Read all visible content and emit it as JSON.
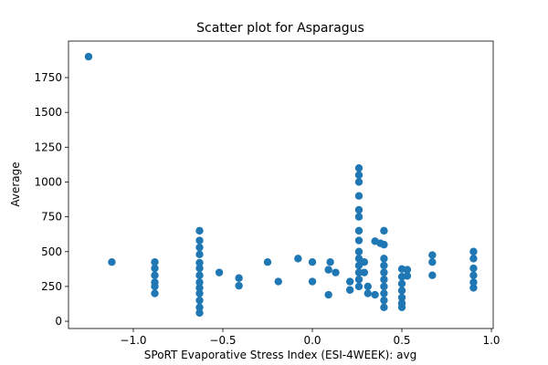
{
  "chart_data": {
    "type": "scatter",
    "title": "Scatter plot for Asparagus",
    "x_label": "SPoRT Evaporative Stress Index (ESI-4WEEK): avg",
    "y_label": "Average",
    "xlim": [
      -1.362,
      1.01
    ],
    "ylim": [
      -52,
      2012
    ],
    "xticks": [
      {
        "value": -1.0,
        "label": "−1.0"
      },
      {
        "value": -0.5,
        "label": "−0.5"
      },
      {
        "value": 0.0,
        "label": "0.0"
      },
      {
        "value": 0.5,
        "label": "0.5"
      },
      {
        "value": 1.0,
        "label": "1.0"
      }
    ],
    "yticks": [
      0,
      250,
      500,
      750,
      1000,
      1250,
      1500,
      1750
    ],
    "series": [
      {
        "color": "#1f77b4",
        "x": [
          -1.25,
          -1.12,
          -0.88,
          -0.88,
          -0.88,
          -0.88,
          -0.88,
          -0.88,
          -0.63,
          -0.63,
          -0.63,
          -0.63,
          -0.63,
          -0.63,
          -0.63,
          -0.63,
          -0.63,
          -0.63,
          -0.63,
          -0.63,
          -0.63,
          -0.52,
          -0.41,
          -0.41,
          -0.25,
          -0.19,
          -0.08,
          0.0,
          0.0,
          0.09,
          0.09,
          0.1,
          0.13,
          0.21,
          0.21,
          0.26,
          0.26,
          0.26,
          0.26,
          0.26,
          0.26,
          0.26,
          0.26,
          0.26,
          0.26,
          0.26,
          0.26,
          0.26,
          0.26,
          0.29,
          0.29,
          0.31,
          0.31,
          0.35,
          0.35,
          0.38,
          0.4,
          0.4,
          0.4,
          0.4,
          0.4,
          0.4,
          0.4,
          0.4,
          0.4,
          0.4,
          0.5,
          0.5,
          0.5,
          0.5,
          0.5,
          0.5,
          0.5,
          0.53,
          0.53,
          0.67,
          0.67,
          0.67,
          0.9,
          0.9,
          0.9,
          0.9,
          0.9,
          0.9
        ],
        "y": [
          1900,
          425,
          200,
          250,
          280,
          330,
          380,
          425,
          60,
          100,
          150,
          200,
          240,
          280,
          330,
          380,
          420,
          480,
          530,
          580,
          650,
          350,
          255,
          310,
          425,
          285,
          450,
          285,
          425,
          190,
          370,
          425,
          350,
          225,
          285,
          250,
          300,
          350,
          400,
          450,
          500,
          580,
          650,
          750,
          800,
          900,
          1000,
          1050,
          1100,
          350,
          425,
          200,
          250,
          575,
          190,
          560,
          100,
          150,
          200,
          250,
          300,
          350,
          400,
          450,
          550,
          650,
          100,
          130,
          170,
          220,
          270,
          320,
          375,
          325,
          370,
          330,
          425,
          475,
          240,
          280,
          330,
          380,
          450,
          500
        ]
      }
    ]
  }
}
